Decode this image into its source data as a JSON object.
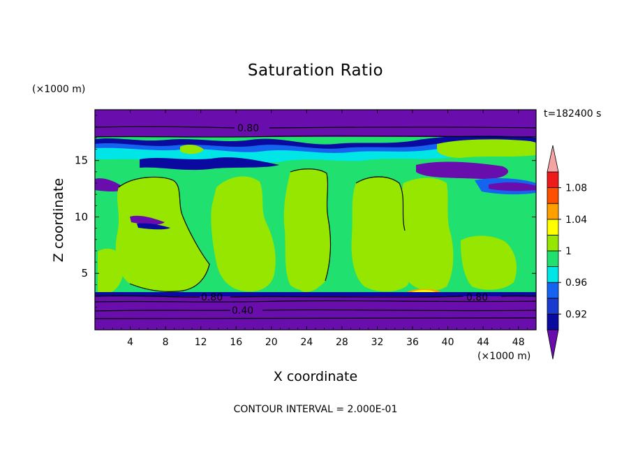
{
  "colors": {
    "deep_purple": "#6a0dad",
    "navy": "#0a0aa0",
    "blue": "#1464f0",
    "cyan": "#00e6e6",
    "spring_green": "#20e070",
    "lime": "#96e600",
    "yellow": "#ffff00",
    "orange": "#ffa000",
    "red_orange": "#ff5000",
    "red": "#ee1b1b",
    "pink": "#f4a4a4"
  },
  "chart_data": {
    "type": "heatmap",
    "title": "Saturation Ratio",
    "xlabel": "X coordinate",
    "ylabel": "Z coordinate",
    "x_unit": "(×1000 m)",
    "z_unit": "(×1000 m)",
    "time_label": "t=182400 s",
    "footer": "CONTOUR INTERVAL = 2.000E-01",
    "xlim": [
      0,
      50
    ],
    "ylim": [
      0,
      19.5
    ],
    "x_ticks": [
      4,
      8,
      12,
      16,
      20,
      24,
      28,
      32,
      36,
      40,
      44,
      48
    ],
    "y_ticks": [
      5,
      10,
      15
    ],
    "colorbar": {
      "levels": [
        0.9,
        0.92,
        0.94,
        0.96,
        0.98,
        1.0,
        1.02,
        1.04,
        1.06,
        1.08,
        1.1
      ],
      "tick_labels": [
        "0.92",
        "0.96",
        "1",
        "1.04",
        "1.08"
      ],
      "band_colors": [
        "#0a0aa0",
        "#1a3ad0",
        "#1464f0",
        "#00e6e6",
        "#20e070",
        "#96e600",
        "#ffff00",
        "#ffa000",
        "#ff5000",
        "#ee1b1b"
      ],
      "under_color": "#6a0dad",
      "over_color": "#f4a4a4"
    },
    "contour_labels": [
      "0.80",
      "0.80",
      "0.40",
      "0.80"
    ]
  }
}
